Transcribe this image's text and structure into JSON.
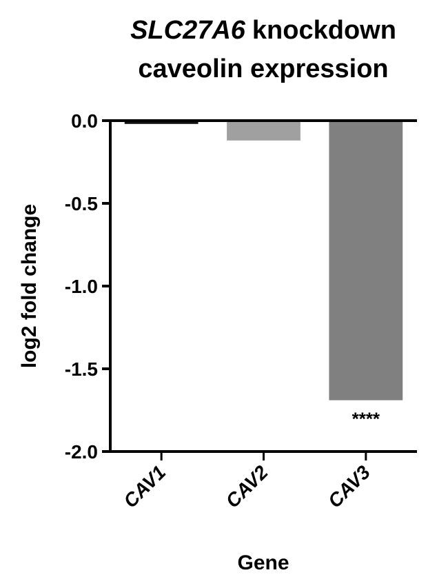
{
  "chart_data": {
    "type": "bar",
    "title": {
      "gene": "SLC27A6",
      "rest": "knockdown",
      "line2": "caveolin expression"
    },
    "x_label": "Gene",
    "y_label": "log2 fold change",
    "categories": [
      "CAV1",
      "CAV2",
      "CAV3"
    ],
    "values": [
      -0.02,
      -0.12,
      -1.69
    ],
    "colors": [
      "#111111",
      "#a0a0a0",
      "#808080"
    ],
    "annotations": [
      "****"
    ],
    "ylim": [
      -2,
      0
    ],
    "yticks": [
      {
        "value": 0,
        "label": "0.0"
      },
      {
        "value": -0.5,
        "label": "-0.5"
      },
      {
        "value": -1,
        "label": "-1.0"
      },
      {
        "value": -1.5,
        "label": "-1.5"
      },
      {
        "value": -2,
        "label": "-2.0"
      }
    ],
    "grid": false
  }
}
